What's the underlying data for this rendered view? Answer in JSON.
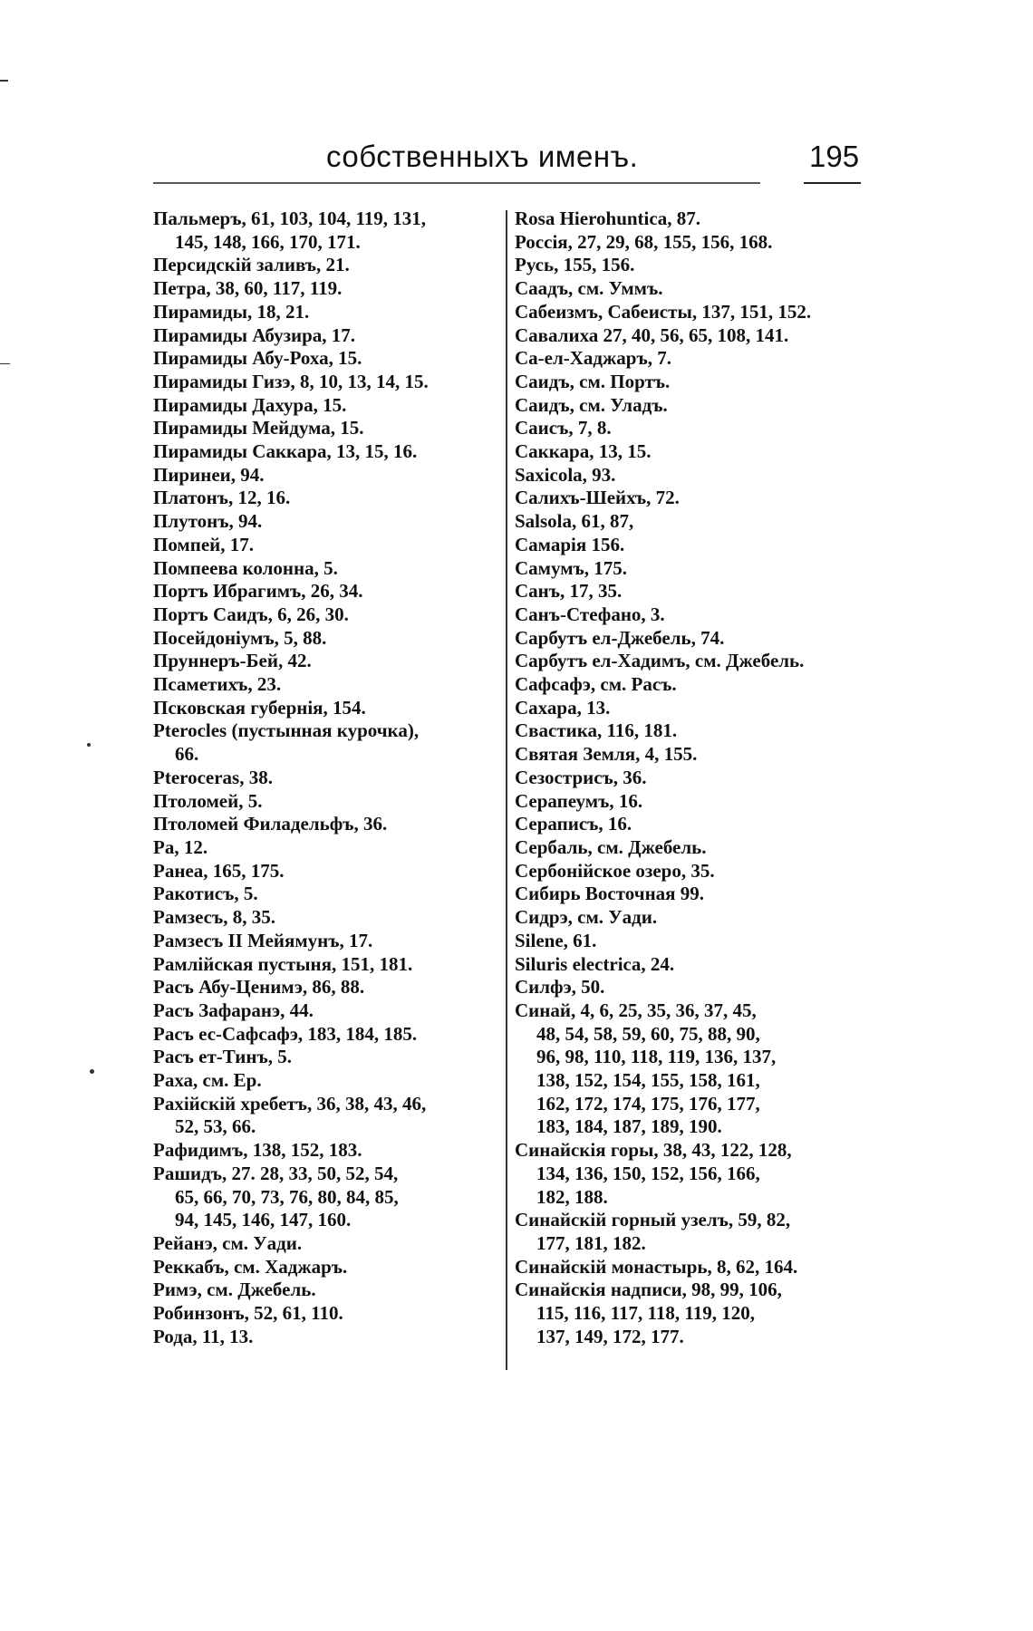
{
  "header": {
    "title": "собственныхъ именъ.",
    "page_number": "195"
  },
  "left_column": [
    {
      "lines": [
        "Пальмеръ, 61, 103, 104, 119, 131,",
        "145, 148, 166, 170, 171."
      ]
    },
    {
      "lines": [
        "Персидскій заливъ, 21."
      ]
    },
    {
      "lines": [
        "Петра, 38, 60, 117, 119."
      ]
    },
    {
      "lines": [
        "Пирамиды, 18, 21."
      ]
    },
    {
      "lines": [
        "Пирамиды Абузира, 17."
      ]
    },
    {
      "lines": [
        "Пирамиды Абу-Роха, 15."
      ]
    },
    {
      "lines": [
        "Пирамиды Гизэ, 8, 10, 13, 14, 15."
      ]
    },
    {
      "lines": [
        "Пирамиды Дахура, 15."
      ]
    },
    {
      "lines": [
        "Пирамиды Мейдума, 15."
      ]
    },
    {
      "lines": [
        "Пирамиды Саккара, 13, 15, 16."
      ]
    },
    {
      "lines": [
        "Пиринеи, 94."
      ]
    },
    {
      "lines": [
        "Платонъ, 12, 16."
      ]
    },
    {
      "lines": [
        "Плутонъ, 94."
      ]
    },
    {
      "lines": [
        "Помпей, 17."
      ]
    },
    {
      "lines": [
        "Помпеева колонна, 5."
      ]
    },
    {
      "lines": [
        "Портъ Ибрагимъ, 26, 34."
      ]
    },
    {
      "lines": [
        "Портъ Саидъ, 6, 26, 30."
      ]
    },
    {
      "lines": [
        "Посейдоніумъ, 5, 88."
      ]
    },
    {
      "lines": [
        "Пруннеръ-Бей, 42."
      ]
    },
    {
      "lines": [
        "Псаметихъ, 23."
      ]
    },
    {
      "lines": [
        "Псковская губернія, 154."
      ]
    },
    {
      "lines": [
        "Pterocles (пустынная курочка),",
        "66."
      ]
    },
    {
      "lines": [
        "Pteroceras, 38."
      ]
    },
    {
      "lines": [
        "Птоломей, 5."
      ]
    },
    {
      "lines": [
        "Птоломей Филадельфъ, 36."
      ]
    },
    {
      "lines": [
        "Ра, 12."
      ]
    },
    {
      "lines": [
        "Ранеа, 165, 175."
      ]
    },
    {
      "lines": [
        "Ракотисъ, 5."
      ]
    },
    {
      "lines": [
        "Рамзесъ, 8, 35."
      ]
    },
    {
      "lines": [
        "Рамзесъ II Мейямунъ, 17."
      ]
    },
    {
      "lines": [
        "Рамлійская пустыня, 151, 181."
      ]
    },
    {
      "lines": [
        "Расъ Абу-Ценимэ, 86, 88."
      ]
    },
    {
      "lines": [
        "Расъ Зафаранэ, 44."
      ]
    },
    {
      "lines": [
        "Расъ ес-Сафсафэ, 183, 184, 185."
      ]
    },
    {
      "lines": [
        "Расъ ет-Тинъ, 5."
      ]
    },
    {
      "lines": [
        "Раха, см. Ер."
      ]
    },
    {
      "lines": [
        "Рахійскій хребетъ, 36, 38, 43, 46,",
        "52, 53, 66."
      ]
    },
    {
      "lines": [
        "Рафидимъ, 138, 152, 183."
      ]
    },
    {
      "lines": [
        "Рашидъ, 27. 28, 33, 50, 52, 54,",
        "65, 66, 70, 73, 76, 80, 84, 85,",
        "94, 145, 146, 147, 160."
      ]
    },
    {
      "lines": [
        "Рейанэ, см. Уади."
      ]
    },
    {
      "lines": [
        "Реккабъ, см. Хаджаръ."
      ]
    },
    {
      "lines": [
        "Римэ, см. Джебель."
      ]
    },
    {
      "lines": [
        "Робинзонъ, 52, 61, 110."
      ]
    },
    {
      "lines": [
        "Рода, 11, 13."
      ]
    }
  ],
  "right_column": [
    {
      "lines": [
        "Rosa Hierohuntica, 87."
      ]
    },
    {
      "lines": [
        "Россія, 27, 29, 68, 155, 156, 168."
      ]
    },
    {
      "lines": [
        "Русь, 155, 156."
      ]
    },
    {
      "lines": [
        "Саадъ, см. Уммъ."
      ]
    },
    {
      "lines": [
        "Сабеизмъ, Сабеисты, 137, 151, 152."
      ]
    },
    {
      "lines": [
        "Савалиха 27, 40, 56, 65, 108, 141."
      ]
    },
    {
      "lines": [
        "Са-ел-Хаджаръ, 7."
      ]
    },
    {
      "lines": [
        "Саидъ, см. Портъ."
      ]
    },
    {
      "lines": [
        "Саидъ, см. Уладъ."
      ]
    },
    {
      "lines": [
        "Саисъ, 7, 8."
      ]
    },
    {
      "lines": [
        "Саккара, 13, 15."
      ]
    },
    {
      "lines": [
        "Saxicola, 93."
      ]
    },
    {
      "lines": [
        "Салихъ-Шейхъ, 72."
      ]
    },
    {
      "lines": [
        "Salsola, 61, 87,"
      ]
    },
    {
      "lines": [
        "Самарія 156."
      ]
    },
    {
      "lines": [
        "Самумъ, 175."
      ]
    },
    {
      "lines": [
        "Санъ, 17, 35."
      ]
    },
    {
      "lines": [
        "Санъ-Стефано, 3."
      ]
    },
    {
      "lines": [
        "Сарбутъ ел-Джебель, 74."
      ]
    },
    {
      "lines": [
        "Сарбутъ ел-Хадимъ, см. Джебель."
      ]
    },
    {
      "lines": [
        "Сафсафэ, см. Расъ."
      ]
    },
    {
      "lines": [
        "Сахара, 13."
      ]
    },
    {
      "lines": [
        "Свастика, 116, 181."
      ]
    },
    {
      "lines": [
        "Святая Земля, 4, 155."
      ]
    },
    {
      "lines": [
        "Сезострисъ, 36."
      ]
    },
    {
      "lines": [
        "Серапеумъ, 16."
      ]
    },
    {
      "lines": [
        "Сераписъ, 16."
      ]
    },
    {
      "lines": [
        "Сербаль, см. Джебель."
      ]
    },
    {
      "lines": [
        "Сербонійское озеро, 35."
      ]
    },
    {
      "lines": [
        "Сибирь Восточная 99."
      ]
    },
    {
      "lines": [
        "Сидрэ, см. Уади."
      ]
    },
    {
      "lines": [
        "Silene, 61."
      ]
    },
    {
      "lines": [
        "Siluris electrica, 24."
      ]
    },
    {
      "lines": [
        "Силфэ, 50."
      ]
    },
    {
      "lines": [
        "Синай, 4, 6, 25, 35, 36, 37, 45,",
        "48, 54, 58, 59, 60, 75, 88, 90,",
        "96, 98, 110, 118, 119, 136, 137,",
        "138, 152, 154, 155, 158, 161,",
        "162, 172, 174, 175, 176, 177,",
        "183, 184, 187, 189, 190."
      ]
    },
    {
      "lines": [
        "Синайскія горы, 38, 43, 122, 128,",
        "134, 136, 150, 152, 156, 166,",
        "182, 188."
      ]
    },
    {
      "lines": [
        "Синайскій горный узелъ, 59, 82,",
        "177, 181, 182."
      ]
    },
    {
      "lines": [
        "Синайскій монастырь, 8, 62, 164."
      ]
    },
    {
      "lines": [
        "Синайскія надписи, 98, 99, 106,",
        "115, 116, 117, 118, 119, 120,",
        "137, 149, 172, 177."
      ]
    }
  ]
}
